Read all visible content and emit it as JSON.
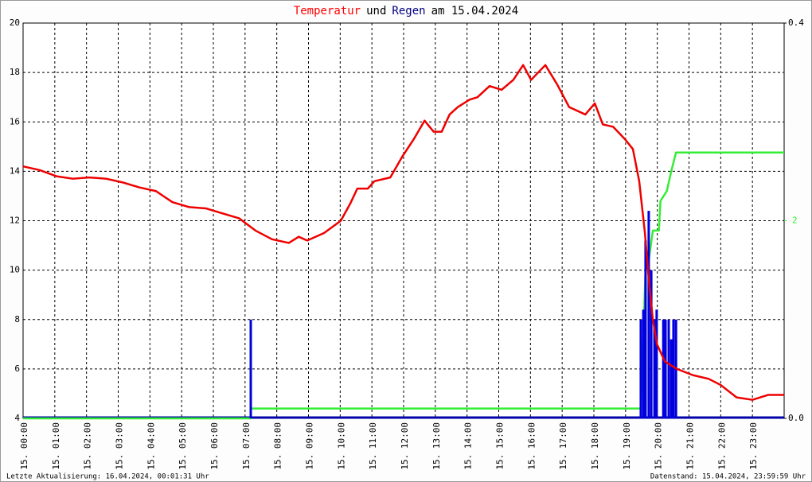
{
  "chart_data": {
    "type": "line",
    "title_parts": [
      {
        "text": "Temperatur",
        "color": "#ff0000"
      },
      {
        "text": "und",
        "color": "#000000"
      },
      {
        "text": "Regen",
        "color": "#000080"
      },
      {
        "text": "am 15.04.2024",
        "color": "#000000"
      }
    ],
    "footer_left": "Letzte Aktualisierung: 16.04.2024, 00:01:31 Uhr",
    "footer_right": "Datenstand: 15.04.2024, 23:59:59 Uhr",
    "grid": true,
    "xlim": [
      0,
      24
    ],
    "xticks": [
      {
        "value": 0,
        "label": "15. 00:00"
      },
      {
        "value": 1,
        "label": "15. 01:00"
      },
      {
        "value": 2,
        "label": "15. 02:00"
      },
      {
        "value": 3,
        "label": "15. 03:00"
      },
      {
        "value": 4,
        "label": "15. 04:00"
      },
      {
        "value": 5,
        "label": "15. 05:00"
      },
      {
        "value": 6,
        "label": "15. 06:00"
      },
      {
        "value": 7,
        "label": "15. 07:00"
      },
      {
        "value": 8,
        "label": "15. 08:00"
      },
      {
        "value": 9,
        "label": "15. 09:00"
      },
      {
        "value": 10,
        "label": "15. 10:00"
      },
      {
        "value": 11,
        "label": "15. 11:00"
      },
      {
        "value": 12,
        "label": "15. 12:00"
      },
      {
        "value": 13,
        "label": "15. 13:00"
      },
      {
        "value": 14,
        "label": "15. 14:00"
      },
      {
        "value": 15,
        "label": "15. 15:00"
      },
      {
        "value": 16,
        "label": "15. 16:00"
      },
      {
        "value": 17,
        "label": "15. 17:00"
      },
      {
        "value": 18,
        "label": "15. 18:00"
      },
      {
        "value": 19,
        "label": "15. 19:00"
      },
      {
        "value": 20,
        "label": "15. 20:00"
      },
      {
        "value": 21,
        "label": "15. 21:00"
      },
      {
        "value": 22,
        "label": "15. 22:00"
      },
      {
        "value": 23,
        "label": "15. 23:00"
      }
    ],
    "ylim": [
      4,
      20
    ],
    "yticks": [
      4,
      6,
      8,
      10,
      12,
      14,
      16,
      18,
      20
    ],
    "y2lim": [
      0,
      0.4
    ],
    "y2ticks": [
      {
        "value": 0,
        "label": "0.0"
      },
      0.4
    ],
    "y3lim": [
      0,
      4
    ],
    "y3ticks": [
      2
    ],
    "y3color": "#33ee33",
    "series": [
      {
        "type": "line",
        "axis": "y",
        "color": "#ee0000",
        "x": [
          0,
          0.52,
          1.05,
          1.57,
          2.09,
          2.62,
          3.14,
          3.66,
          4.19,
          4.71,
          5.24,
          5.76,
          6.28,
          6.81,
          7.33,
          7.85,
          8.38,
          8.69,
          8.96,
          9.49,
          10.02,
          10.32,
          10.54,
          10.87,
          11.08,
          11.58,
          11.96,
          12.32,
          12.66,
          12.95,
          13.2,
          13.45,
          13.71,
          14.08,
          14.33,
          14.71,
          15.09,
          15.46,
          15.77,
          16.02,
          16.47,
          16.85,
          17.22,
          17.73,
          18.03,
          18.28,
          18.61,
          18.98,
          19.23,
          19.43,
          19.61,
          19.74,
          19.86,
          19.99,
          20.24,
          20.62,
          21.12,
          21.62,
          22.0,
          22.5,
          23.0,
          23.5,
          24.0
        ],
        "values": [
          14.2,
          14.05,
          13.8,
          13.7,
          13.75,
          13.7,
          13.55,
          13.35,
          13.2,
          12.75,
          12.55,
          12.5,
          12.3,
          12.1,
          11.6,
          11.25,
          11.1,
          11.35,
          11.2,
          11.5,
          12.0,
          12.7,
          13.3,
          13.3,
          13.6,
          13.75,
          14.6,
          15.3,
          16.05,
          15.6,
          15.6,
          16.3,
          16.6,
          16.9,
          17.0,
          17.45,
          17.3,
          17.7,
          18.3,
          17.7,
          18.3,
          17.5,
          16.6,
          16.3,
          16.75,
          15.9,
          15.8,
          15.3,
          14.9,
          13.6,
          11.5,
          9.5,
          8.0,
          7.0,
          6.3,
          6.0,
          5.75,
          5.6,
          5.35,
          4.85,
          4.75,
          4.95,
          4.95
        ]
      },
      {
        "type": "bar",
        "axis": "y2",
        "color": "#0000dd",
        "x": [
          7.18,
          19.48,
          19.56,
          19.63,
          19.73,
          19.81,
          19.91,
          19.98,
          20.19,
          20.26,
          20.36,
          20.44,
          20.51,
          20.59
        ],
        "values": [
          0.1,
          0.1,
          0.11,
          0.18,
          0.21,
          0.15,
          0.1,
          0.11,
          0.1,
          0.1,
          0.1,
          0.08,
          0.1,
          0.1
        ]
      },
      {
        "type": "line",
        "axis": "y3",
        "color": "#33ee33",
        "x": [
          0,
          7.18,
          7.18,
          19.48,
          19.63,
          19.73,
          19.86,
          20.05,
          20.1,
          20.3,
          20.44,
          20.59,
          24
        ],
        "values": [
          0,
          0,
          0.1,
          0.1,
          1.5,
          1.6,
          1.9,
          1.9,
          2.2,
          2.3,
          2.5,
          2.69,
          2.69
        ]
      }
    ]
  }
}
